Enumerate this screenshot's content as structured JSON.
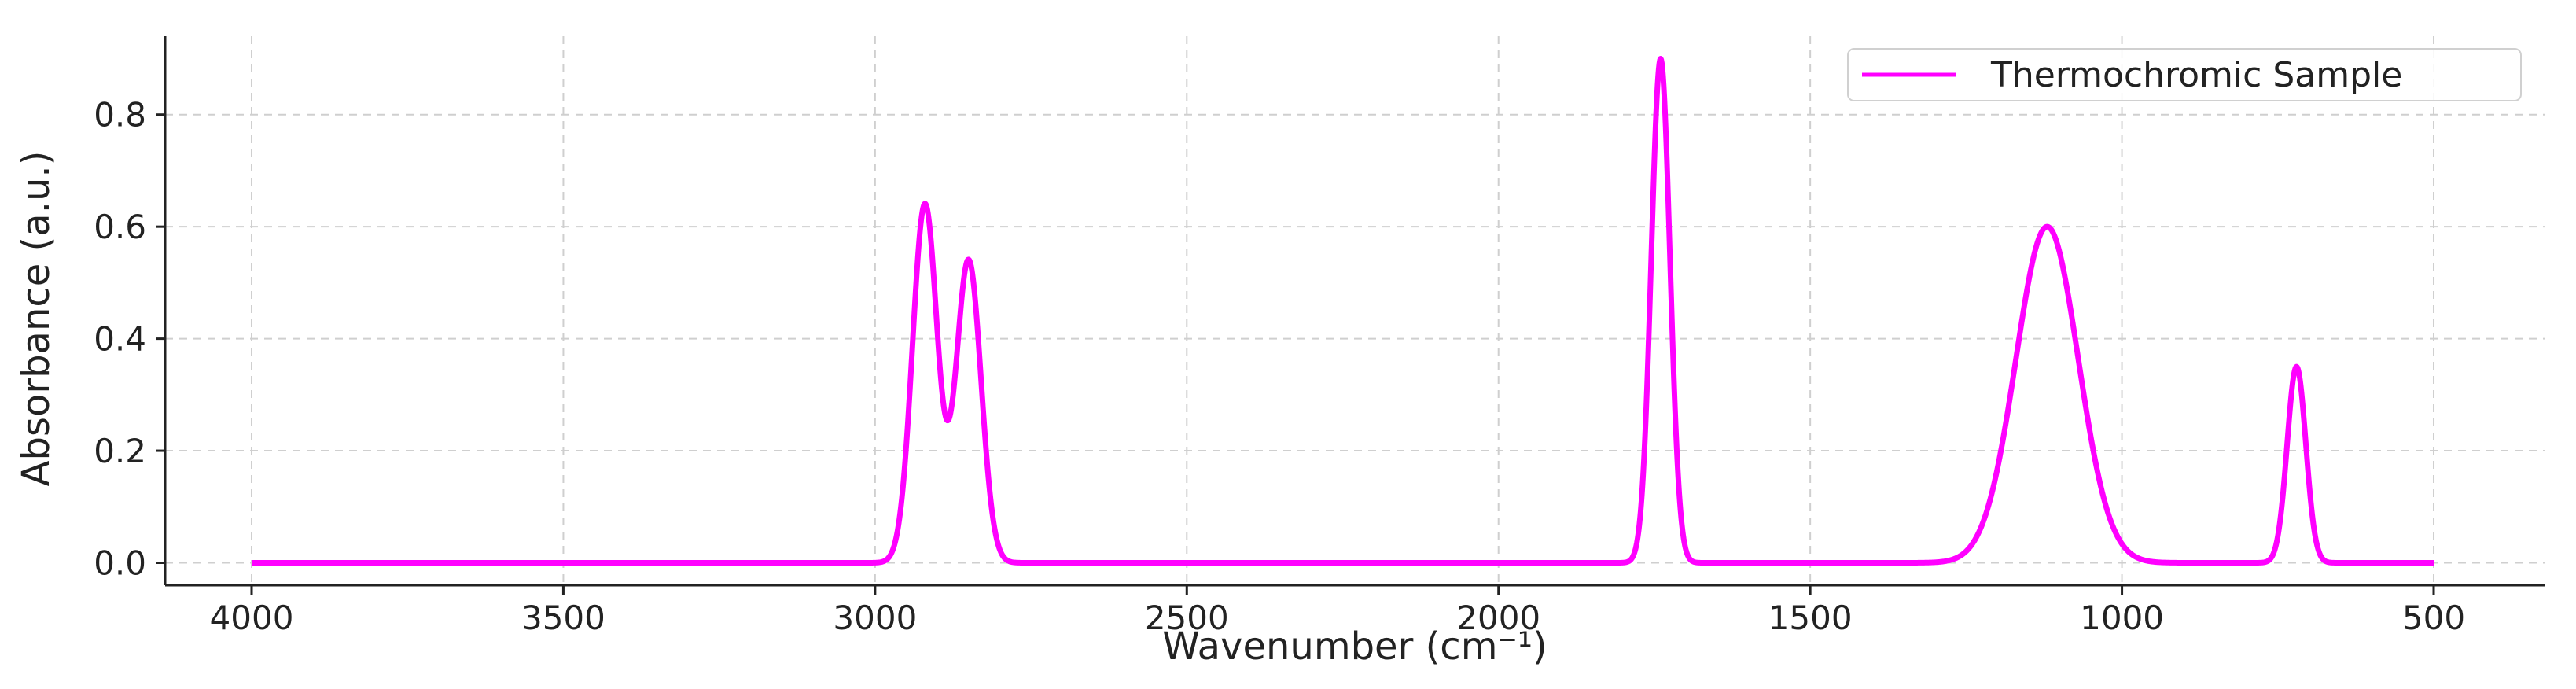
{
  "chart_data": {
    "type": "line",
    "title": "",
    "xlabel": "Wavenumber (cm⁻¹)",
    "ylabel": "Absorbance (a.u.)",
    "xlim": [
      4000,
      500
    ],
    "x_reversed": true,
    "ylim": [
      -0.04,
      0.94
    ],
    "xticks": [
      4000,
      3500,
      3000,
      2500,
      2000,
      1500,
      1000,
      500
    ],
    "yticks": [
      0.0,
      0.2,
      0.4,
      0.6,
      0.8
    ],
    "ytick_labels": [
      "0.0",
      "0.2",
      "0.4",
      "0.6",
      "0.8"
    ],
    "grid": true,
    "legend_position": "top-right",
    "series": [
      {
        "name": "Thermochromic Sample",
        "color": "#ff00ff",
        "x_range": [
          4000,
          500
        ],
        "baseline": 0.0,
        "peaks": [
          {
            "center": 2920,
            "height": 0.64,
            "width": 20
          },
          {
            "center": 2850,
            "height": 0.54,
            "width": 20
          },
          {
            "center": 1740,
            "height": 0.9,
            "width": 15
          },
          {
            "center": 1120,
            "height": 0.6,
            "width": 50
          },
          {
            "center": 720,
            "height": 0.35,
            "width": 15
          }
        ]
      }
    ]
  }
}
